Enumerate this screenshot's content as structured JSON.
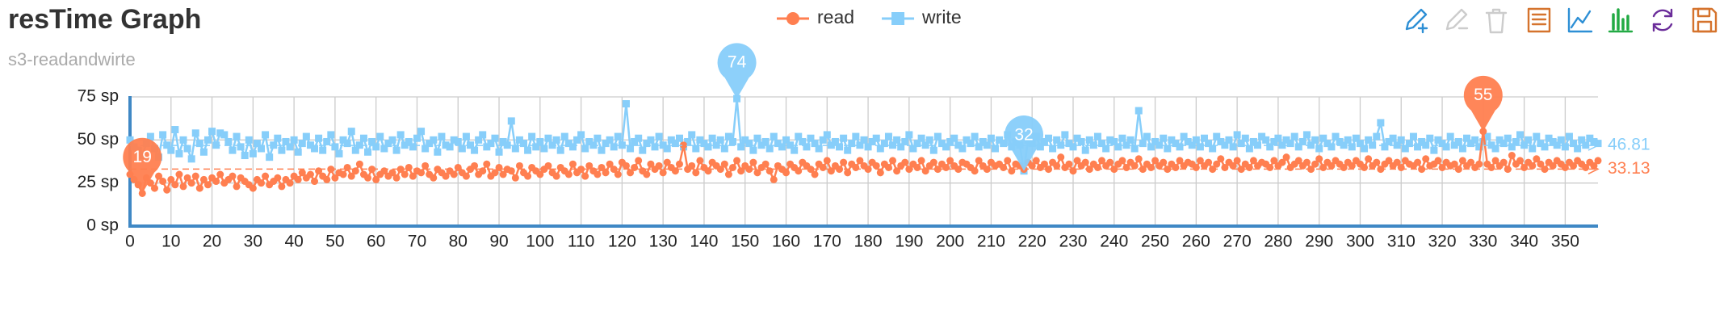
{
  "chart_data": {
    "type": "line",
    "title": "resTime Graph",
    "subtitle": "s3-readandwirte",
    "xlim": [
      0,
      358
    ],
    "xticks": [
      0,
      10,
      20,
      30,
      40,
      50,
      60,
      70,
      80,
      90,
      100,
      110,
      120,
      130,
      140,
      150,
      160,
      170,
      180,
      190,
      200,
      210,
      220,
      230,
      240,
      250,
      260,
      270,
      280,
      290,
      300,
      310,
      320,
      330,
      340,
      350
    ],
    "ylim": [
      0,
      75
    ],
    "yticks": [
      {
        "value": 0,
        "label": "0 sp"
      },
      {
        "value": 25,
        "label": "25 sp"
      },
      {
        "value": 50,
        "label": "50 sp"
      },
      {
        "value": 75,
        "label": "75 sp"
      }
    ],
    "grid": true,
    "legend": "top",
    "x": [
      0,
      1,
      2,
      3,
      4,
      5,
      6,
      7,
      8,
      9,
      10,
      11,
      12,
      13,
      14,
      15,
      16,
      17,
      18,
      19,
      20,
      21,
      22,
      23,
      24,
      25,
      26,
      27,
      28,
      29,
      30,
      31,
      32,
      33,
      34,
      35,
      36,
      37,
      38,
      39,
      40,
      41,
      42,
      43,
      44,
      45,
      46,
      47,
      48,
      49,
      50,
      51,
      52,
      53,
      54,
      55,
      56,
      57,
      58,
      59,
      60,
      61,
      62,
      63,
      64,
      65,
      66,
      67,
      68,
      69,
      70,
      71,
      72,
      73,
      74,
      75,
      76,
      77,
      78,
      79,
      80,
      81,
      82,
      83,
      84,
      85,
      86,
      87,
      88,
      89,
      90,
      91,
      92,
      93,
      94,
      95,
      96,
      97,
      98,
      99,
      100,
      101,
      102,
      103,
      104,
      105,
      106,
      107,
      108,
      109,
      110,
      111,
      112,
      113,
      114,
      115,
      116,
      117,
      118,
      119,
      120,
      121,
      122,
      123,
      124,
      125,
      126,
      127,
      128,
      129,
      130,
      131,
      132,
      133,
      134,
      135,
      136,
      137,
      138,
      139,
      140,
      141,
      142,
      143,
      144,
      145,
      146,
      147,
      148,
      149,
      150,
      151,
      152,
      153,
      154,
      155,
      156,
      157,
      158,
      159,
      160,
      161,
      162,
      163,
      164,
      165,
      166,
      167,
      168,
      169,
      170,
      171,
      172,
      173,
      174,
      175,
      176,
      177,
      178,
      179,
      180,
      181,
      182,
      183,
      184,
      185,
      186,
      187,
      188,
      189,
      190,
      191,
      192,
      193,
      194,
      195,
      196,
      197,
      198,
      199,
      200,
      201,
      202,
      203,
      204,
      205,
      206,
      207,
      208,
      209,
      210,
      211,
      212,
      213,
      214,
      215,
      216,
      217,
      218,
      219,
      220,
      221,
      222,
      223,
      224,
      225,
      226,
      227,
      228,
      229,
      230,
      231,
      232,
      233,
      234,
      235,
      236,
      237,
      238,
      239,
      240,
      241,
      242,
      243,
      244,
      245,
      246,
      247,
      248,
      249,
      250,
      251,
      252,
      253,
      254,
      255,
      256,
      257,
      258,
      259,
      260,
      261,
      262,
      263,
      264,
      265,
      266,
      267,
      268,
      269,
      270,
      271,
      272,
      273,
      274,
      275,
      276,
      277,
      278,
      279,
      280,
      281,
      282,
      283,
      284,
      285,
      286,
      287,
      288,
      289,
      290,
      291,
      292,
      293,
      294,
      295,
      296,
      297,
      298,
      299,
      300,
      301,
      302,
      303,
      304,
      305,
      306,
      307,
      308,
      309,
      310,
      311,
      312,
      313,
      314,
      315,
      316,
      317,
      318,
      319,
      320,
      321,
      322,
      323,
      324,
      325,
      326,
      327,
      328,
      329,
      330,
      331,
      332,
      333,
      334,
      335,
      336,
      337,
      338,
      339,
      340,
      341,
      342,
      343,
      344,
      345,
      346,
      347,
      348,
      349,
      350,
      351,
      352,
      353,
      354,
      355,
      356,
      357,
      358
    ],
    "series": [
      {
        "name": "read",
        "color": "#ff7f50",
        "symbol": "circle",
        "average": 33.13,
        "values": [
          30,
          27,
          24,
          19,
          28,
          25,
          22,
          29,
          26,
          21,
          27,
          24,
          30,
          23,
          28,
          25,
          29,
          22,
          27,
          24,
          28,
          26,
          30,
          25,
          27,
          29,
          23,
          28,
          26,
          24,
          22,
          27,
          25,
          29,
          24,
          26,
          28,
          23,
          27,
          25,
          29,
          27,
          31,
          28,
          30,
          26,
          32,
          29,
          27,
          33,
          28,
          31,
          30,
          34,
          29,
          32,
          36,
          30,
          28,
          33,
          27,
          30,
          32,
          29,
          31,
          28,
          33,
          30,
          34,
          29,
          32,
          31,
          35,
          30,
          28,
          33,
          31,
          29,
          32,
          30,
          34,
          31,
          29,
          33,
          35,
          30,
          32,
          36,
          29,
          31,
          34,
          30,
          33,
          32,
          28,
          35,
          31,
          29,
          34,
          32,
          30,
          33,
          35,
          31,
          29,
          34,
          32,
          30,
          36,
          31,
          33,
          29,
          35,
          32,
          30,
          34,
          31,
          36,
          33,
          30,
          37,
          35,
          31,
          34,
          38,
          32,
          30,
          36,
          33,
          35,
          31,
          37,
          34,
          32,
          36,
          47,
          33,
          35,
          31,
          38,
          34,
          32,
          37,
          35,
          33,
          36,
          30,
          34,
          38,
          32,
          35,
          33,
          37,
          31,
          34,
          36,
          32,
          27,
          35,
          33,
          31,
          36,
          34,
          32,
          37,
          35,
          33,
          30,
          36,
          34,
          38,
          32,
          35,
          33,
          37,
          31,
          36,
          34,
          38,
          35,
          33,
          37,
          35,
          31,
          36,
          34,
          38,
          32,
          35,
          37,
          33,
          36,
          34,
          38,
          32,
          35,
          37,
          33,
          36,
          34,
          38,
          35,
          33,
          37,
          36,
          34,
          32,
          38,
          35,
          33,
          37,
          35,
          36,
          34,
          38,
          32,
          36,
          35,
          33,
          37,
          35,
          38,
          34,
          36,
          33,
          37,
          35,
          40,
          34,
          36,
          32,
          38,
          35,
          37,
          33,
          36,
          34,
          38,
          35,
          37,
          33,
          36,
          38,
          34,
          37,
          35,
          39,
          33,
          36,
          34,
          38,
          35,
          37,
          33,
          36,
          34,
          38,
          35,
          37,
          36,
          34,
          38,
          35,
          37,
          33,
          36,
          39,
          34,
          37,
          35,
          38,
          33,
          36,
          34,
          38,
          35,
          37,
          36,
          34,
          38,
          35,
          37,
          40,
          34,
          36,
          38,
          35,
          37,
          33,
          36,
          39,
          34,
          37,
          35,
          38,
          36,
          34,
          37,
          35,
          38,
          36,
          34,
          39,
          35,
          37,
          33,
          36,
          38,
          35,
          37,
          34,
          38,
          36,
          35,
          37,
          33,
          39,
          35,
          36,
          38,
          34,
          37,
          35,
          36,
          33,
          38,
          35,
          37,
          34,
          36,
          55,
          36,
          34,
          38,
          35,
          37,
          33,
          41,
          36,
          38,
          34,
          37,
          35,
          39,
          36,
          33,
          37,
          35,
          38,
          36,
          34,
          37,
          35,
          38,
          36,
          34,
          37,
          35,
          38
        ]
      },
      {
        "name": "write",
        "color": "#87cefa",
        "symbol": "square",
        "average": 46.81,
        "values": [
          50,
          46,
          44,
          41,
          48,
          52,
          45,
          40,
          53,
          47,
          44,
          56,
          42,
          50,
          45,
          39,
          54,
          48,
          43,
          50,
          55,
          47,
          54,
          53,
          49,
          44,
          52,
          46,
          41,
          50,
          42,
          48,
          45,
          53,
          40,
          47,
          51,
          44,
          49,
          46,
          50,
          43,
          48,
          52,
          47,
          45,
          51,
          44,
          49,
          53,
          46,
          42,
          50,
          48,
          55,
          44,
          47,
          51,
          43,
          49,
          46,
          52,
          45,
          48,
          50,
          44,
          53,
          47,
          49,
          46,
          51,
          55,
          45,
          48,
          50,
          43,
          52,
          47,
          46,
          50,
          49,
          45,
          52,
          47,
          44,
          50,
          53,
          46,
          48,
          51,
          43,
          49,
          47,
          61,
          45,
          50,
          48,
          44,
          52,
          46,
          49,
          45,
          51,
          47,
          50,
          44,
          52,
          48,
          46,
          50,
          53,
          45,
          49,
          47,
          51,
          44,
          48,
          50,
          46,
          52,
          47,
          71,
          45,
          49,
          51,
          44,
          48,
          50,
          46,
          52,
          47,
          45,
          50,
          48,
          51,
          46,
          49,
          53,
          45,
          50,
          48,
          46,
          51,
          47,
          50,
          45,
          52,
          49,
          74,
          46,
          50,
          48,
          44,
          51,
          47,
          49,
          45,
          52,
          48,
          46,
          50,
          47,
          44,
          52,
          49,
          46,
          51,
          48,
          45,
          50,
          53,
          47,
          49,
          46,
          51,
          44,
          48,
          52,
          47,
          50,
          46,
          49,
          51,
          45,
          48,
          52,
          47,
          50,
          46,
          49,
          53,
          45,
          48,
          51,
          47,
          50,
          44,
          52,
          48,
          46,
          49,
          51,
          47,
          45,
          50,
          48,
          52,
          46,
          49,
          47,
          51,
          45,
          50,
          48,
          53,
          46,
          49,
          47,
          32,
          50,
          48,
          52,
          46,
          49,
          51,
          45,
          50,
          47,
          53,
          48,
          46,
          51,
          49,
          44,
          50,
          47,
          52,
          48,
          45,
          50,
          49,
          46,
          51,
          47,
          50,
          45,
          67,
          48,
          52,
          46,
          49,
          47,
          51,
          45,
          50,
          48,
          46,
          52,
          49,
          47,
          50,
          46,
          51,
          48,
          45,
          52,
          49,
          47,
          50,
          46,
          53,
          48,
          51,
          45,
          49,
          47,
          52,
          50,
          46,
          49,
          51,
          47,
          50,
          48,
          52,
          46,
          49,
          53,
          47,
          50,
          45,
          51,
          48,
          46,
          52,
          49,
          47,
          50,
          46,
          51,
          48,
          45,
          50,
          47,
          52,
          60,
          46,
          49,
          51,
          47,
          50,
          45,
          48,
          52,
          46,
          49,
          47,
          51,
          44,
          50,
          48,
          46,
          52,
          47,
          49,
          45,
          51,
          48,
          50,
          46,
          49,
          52,
          47,
          45,
          50,
          48,
          51,
          46,
          49,
          53,
          47,
          50,
          45,
          52,
          48,
          46,
          51,
          49,
          47,
          50,
          46,
          52,
          48,
          45,
          50,
          47,
          51,
          49,
          48
        ]
      }
    ]
  }
}
